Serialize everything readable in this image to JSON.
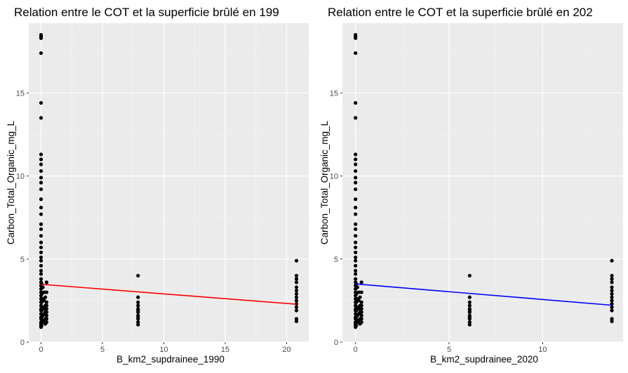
{
  "chart_data": [
    {
      "type": "scatter",
      "title": "Relation entre le COT et la superficie brûlé en 199",
      "xlabel": "B_km2_supdrainee_1990",
      "ylabel": "Carbon_Total_Organic_mg_L",
      "xlim": [
        -1.0,
        21.8
      ],
      "ylim": [
        0,
        19.2
      ],
      "xticks": [
        0,
        5,
        10,
        15,
        20
      ],
      "yticks": [
        0,
        5,
        10,
        15
      ],
      "grid": true,
      "fit_line": {
        "color": "#ff0000",
        "x": [
          0,
          20.8
        ],
        "y": [
          3.48,
          2.28
        ]
      },
      "points": [
        {
          "x": 0,
          "y": [
            18.5,
            18.4,
            18.3,
            17.4,
            14.4,
            13.5,
            11.3,
            11.0,
            10.7,
            10.3,
            9.9,
            9.6,
            9.2,
            8.6,
            8.1,
            7.7,
            7.1,
            6.8,
            6.4,
            6.0,
            5.7,
            5.4,
            5.1,
            4.9,
            4.6,
            4.3,
            4.1,
            3.8,
            3.6,
            3.4,
            3.2,
            3.0,
            2.8,
            2.6,
            2.4,
            2.2,
            2.0,
            1.9,
            1.7,
            1.5,
            1.4,
            1.2,
            1.1,
            1.0,
            0.9
          ]
        },
        {
          "x": 0.05,
          "y": [
            3.5,
            2.9,
            2.4,
            1.9,
            1.5,
            1.2,
            1.0
          ]
        },
        {
          "x": 0.15,
          "y": [
            3.3,
            2.6,
            2.1,
            1.6,
            1.3
          ]
        },
        {
          "x": 0.25,
          "y": [
            3.0,
            2.5,
            2.0,
            1.7,
            1.2
          ]
        },
        {
          "x": 0.35,
          "y": [
            2.7,
            2.2,
            1.8,
            1.4,
            1.1
          ]
        },
        {
          "x": 0.45,
          "y": [
            3.6,
            3.0,
            2.4,
            2.2,
            2.0,
            1.8,
            1.6,
            1.4,
            1.2
          ]
        },
        {
          "x": 7.9,
          "y": [
            4.0,
            2.7,
            2.4,
            2.2,
            2.0,
            1.9,
            1.8,
            1.6,
            1.5,
            1.4,
            1.2,
            1.05
          ]
        },
        {
          "x": 20.8,
          "y": [
            4.9,
            4.0,
            3.8,
            3.6,
            3.3,
            3.1,
            2.9,
            2.7,
            2.5,
            2.3,
            2.1,
            1.9,
            1.4,
            1.25
          ]
        }
      ]
    },
    {
      "type": "scatter",
      "title": "Relation entre le COT et la superficie brûlé en 202",
      "xlabel": "B_km2_supdrainee_2020",
      "ylabel": "Carbon_Total_Organic_mg_L",
      "xlim": [
        -0.7,
        14.3
      ],
      "ylim": [
        0,
        19.2
      ],
      "xticks": [
        0,
        5,
        10
      ],
      "yticks": [
        0,
        5,
        10,
        15
      ],
      "grid": true,
      "fit_line": {
        "color": "#0000ff",
        "x": [
          0,
          13.7
        ],
        "y": [
          3.5,
          2.22
        ]
      },
      "points": [
        {
          "x": 0,
          "y": [
            18.5,
            18.4,
            18.3,
            17.4,
            14.4,
            13.5,
            11.3,
            11.0,
            10.7,
            10.3,
            9.9,
            9.6,
            9.2,
            8.6,
            8.1,
            7.7,
            7.1,
            6.8,
            6.4,
            6.0,
            5.7,
            5.4,
            5.1,
            4.9,
            4.6,
            4.3,
            4.1,
            3.8,
            3.6,
            3.4,
            3.2,
            3.0,
            2.8,
            2.6,
            2.4,
            2.2,
            2.0,
            1.9,
            1.7,
            1.5,
            1.4,
            1.2,
            1.1,
            1.0,
            0.9
          ]
        },
        {
          "x": 0.04,
          "y": [
            3.5,
            2.9,
            2.4,
            1.9,
            1.5,
            1.2,
            1.0
          ]
        },
        {
          "x": 0.1,
          "y": [
            3.3,
            2.6,
            2.1,
            1.6,
            1.3
          ]
        },
        {
          "x": 0.17,
          "y": [
            3.0,
            2.5,
            2.0,
            1.7,
            1.2
          ]
        },
        {
          "x": 0.24,
          "y": [
            2.7,
            2.2,
            1.8,
            1.4,
            1.1
          ]
        },
        {
          "x": 0.32,
          "y": [
            3.6,
            3.0,
            2.4,
            2.2,
            2.0,
            1.8,
            1.6,
            1.4,
            1.2
          ]
        },
        {
          "x": 6.1,
          "y": [
            4.0,
            2.7,
            2.4,
            2.2,
            2.0,
            1.9,
            1.8,
            1.6,
            1.5,
            1.4,
            1.2,
            1.05
          ]
        },
        {
          "x": 13.7,
          "y": [
            4.9,
            4.0,
            3.8,
            3.6,
            3.3,
            3.1,
            2.9,
            2.7,
            2.5,
            2.3,
            2.1,
            1.9,
            1.4,
            1.25
          ]
        }
      ]
    }
  ]
}
